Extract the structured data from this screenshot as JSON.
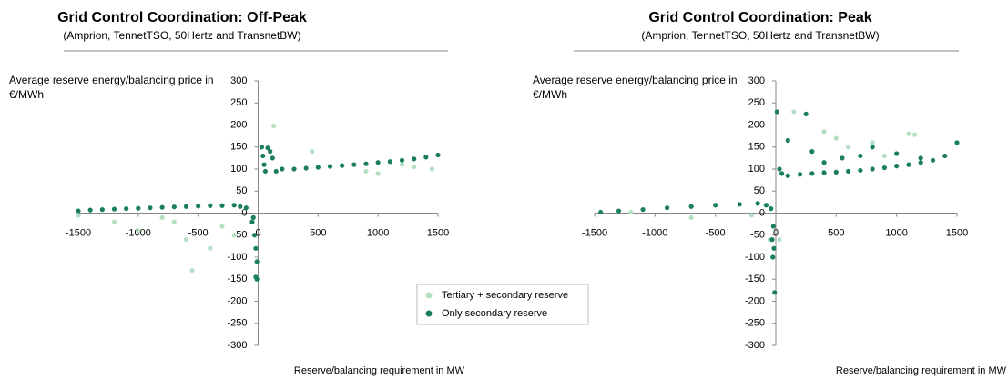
{
  "chart_data": [
    {
      "type": "scatter",
      "title": "Grid Control Coordination: Off-Peak",
      "subtitle": "(Amprion, TennetTSO, 50Hertz and TransnetBW)",
      "y_label": "Average reserve energy/balancing price in €/MWh",
      "x_label": "Reserve/balancing requirement in MW",
      "xlim": [
        -1500,
        1500
      ],
      "ylim": [
        -300,
        300
      ],
      "xticks": [
        -1500,
        -1000,
        -500,
        0,
        500,
        1000,
        1500
      ],
      "yticks": [
        -300,
        -250,
        -200,
        -150,
        -100,
        -50,
        0,
        50,
        100,
        150,
        200,
        250,
        300
      ],
      "series": [
        {
          "name": "Tertiary + secondary reserve",
          "color": "#b5dfc3",
          "x": [
            130,
            -1500,
            -1200,
            -1000,
            -800,
            -700,
            -600,
            -550,
            -400,
            -300,
            -200,
            450,
            900,
            1000,
            1300,
            1450,
            1200
          ],
          "values": [
            198,
            -5,
            -20,
            -40,
            -10,
            -20,
            -60,
            -130,
            -80,
            -30,
            -50,
            140,
            95,
            90,
            105,
            100,
            110
          ]
        },
        {
          "name": "Only secondary reserve",
          "color": "#1b7f5e",
          "x": [
            -1500,
            -1400,
            -1300,
            -1200,
            -1100,
            -1000,
            -900,
            -800,
            -700,
            -600,
            -500,
            -400,
            -300,
            -200,
            -150,
            -100,
            -40,
            -50,
            -30,
            -20,
            -10,
            -20,
            -10,
            30,
            40,
            50,
            60,
            80,
            100,
            120,
            150,
            200,
            300,
            400,
            500,
            600,
            700,
            800,
            900,
            1000,
            1100,
            1200,
            1300,
            1400,
            1500
          ],
          "values": [
            5,
            7,
            8,
            9,
            10,
            11,
            12,
            13,
            14,
            15,
            16,
            17,
            17,
            18,
            15,
            12,
            -10,
            -20,
            -50,
            -80,
            -110,
            -145,
            -150,
            150,
            130,
            110,
            95,
            148,
            140,
            125,
            95,
            100,
            100,
            102,
            104,
            106,
            108,
            110,
            112,
            115,
            117,
            120,
            123,
            127,
            132
          ]
        }
      ]
    },
    {
      "type": "scatter",
      "title": "Grid Control Coordination: Peak",
      "subtitle": "(Amprion, TennetTSO, 50Hertz and TransnetBW)",
      "y_label": "Average reserve energy/balancing price in €/MWh",
      "x_label": "Reserve/balancing requirement in MW",
      "xlim": [
        -1500,
        1500
      ],
      "ylim": [
        -300,
        300
      ],
      "xticks": [
        -1500,
        -1000,
        -500,
        0,
        500,
        1000,
        1500
      ],
      "yticks": [
        -300,
        -250,
        -200,
        -150,
        -100,
        -50,
        0,
        50,
        100,
        150,
        200,
        250,
        300
      ],
      "series": [
        {
          "color": "#b5dfc3",
          "x": [
            -200,
            -700,
            -1200,
            150,
            400,
            500,
            800,
            1100,
            1150,
            600,
            900,
            30,
            -50
          ],
          "values": [
            -5,
            -10,
            2,
            230,
            185,
            170,
            160,
            180,
            178,
            150,
            130,
            -60,
            -60
          ]
        },
        {
          "color": "#1b7f5e",
          "x": [
            -1450,
            -1300,
            -1100,
            -900,
            -700,
            -500,
            -300,
            -150,
            -80,
            -40,
            -20,
            -30,
            -25,
            -10,
            -15,
            10,
            250,
            100,
            30,
            50,
            100,
            200,
            300,
            400,
            500,
            600,
            700,
            800,
            900,
            1000,
            1100,
            1200,
            1300,
            1400,
            1500,
            300,
            550,
            800,
            1000,
            700,
            400,
            1200
          ],
          "values": [
            2,
            5,
            8,
            12,
            15,
            18,
            20,
            22,
            18,
            10,
            -30,
            -60,
            -100,
            -180,
            -80,
            230,
            225,
            165,
            100,
            90,
            85,
            88,
            90,
            92,
            93,
            95,
            97,
            100,
            103,
            107,
            110,
            115,
            120,
            130,
            160,
            140,
            125,
            150,
            135,
            130,
            115,
            125
          ]
        }
      ]
    }
  ]
}
